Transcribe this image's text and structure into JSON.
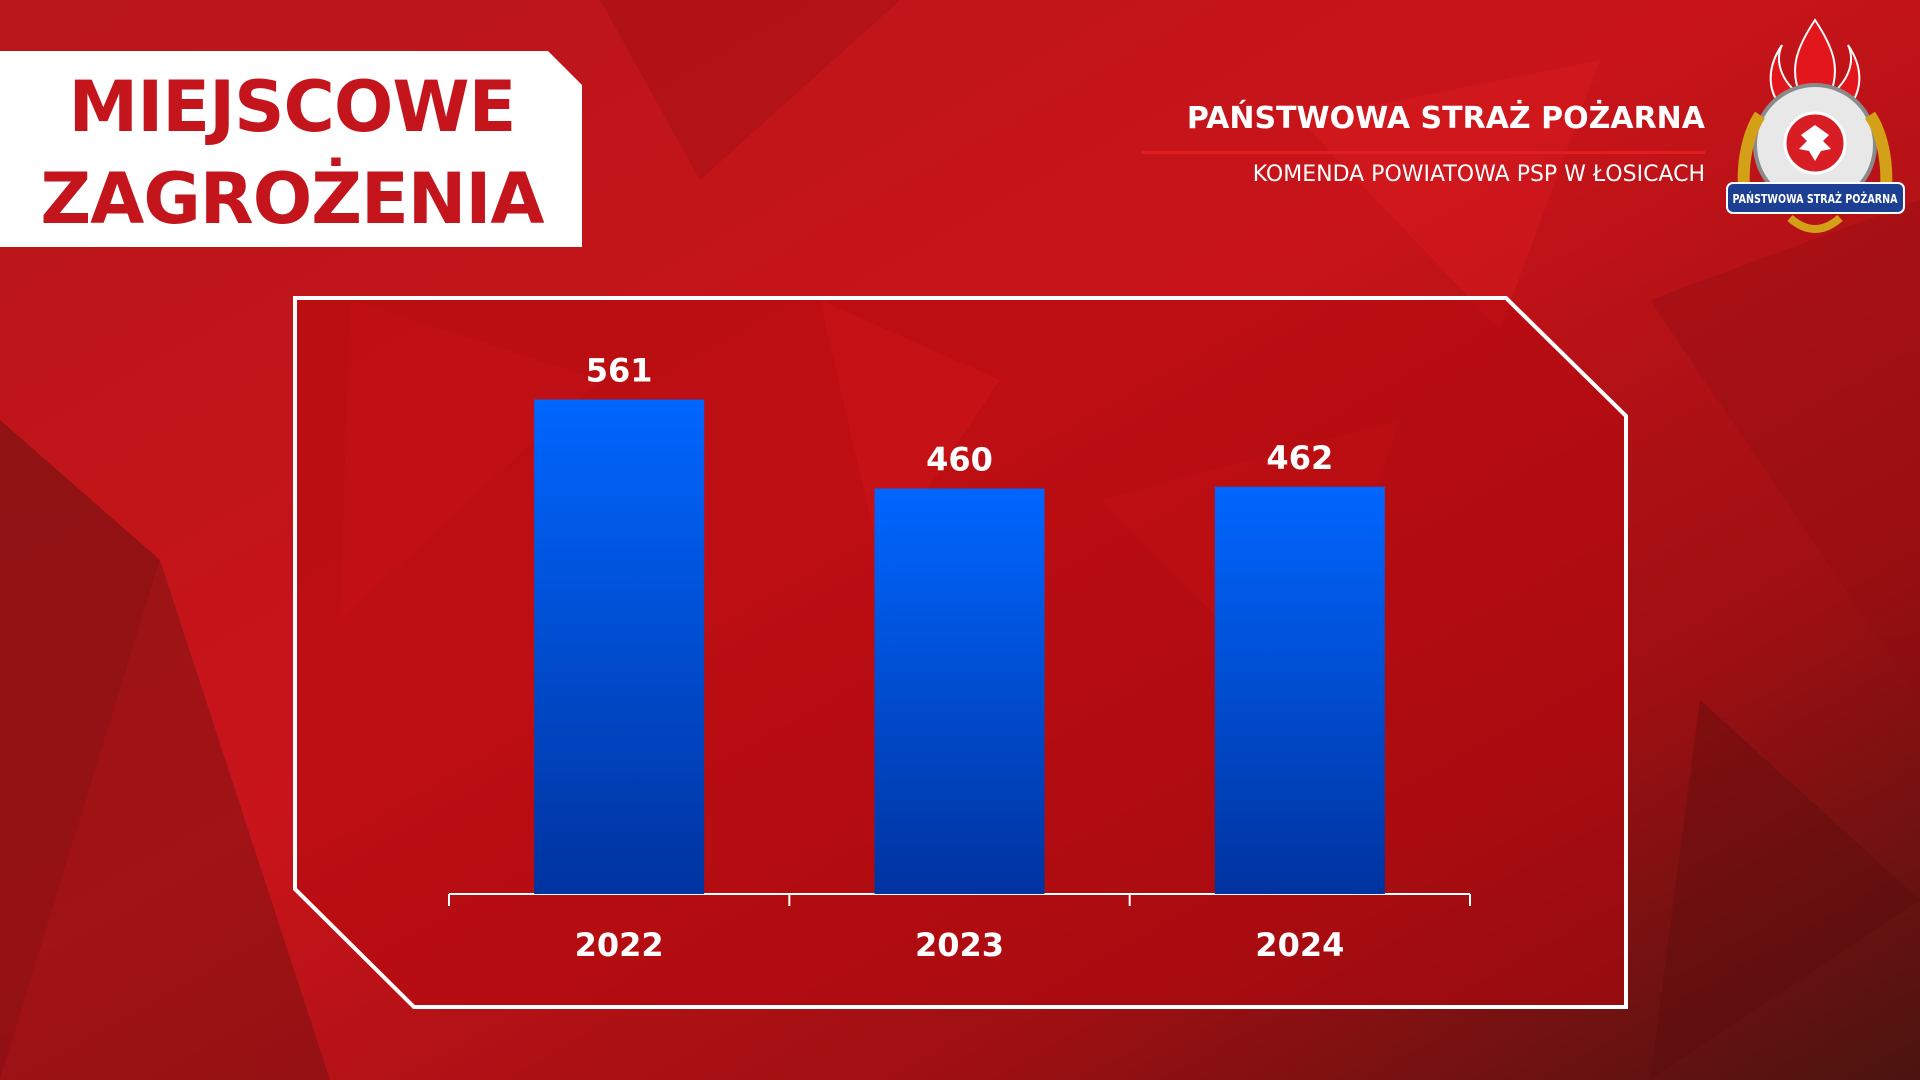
{
  "chart_data": {
    "type": "bar",
    "title": "MIEJSCOWE ZAGROŻENIA",
    "organization": "PAŃSTWOWA STRAŻ POŻARNA",
    "unit": "KOMENDA POWIATOWA PSP W ŁOSICACH",
    "categories": [
      "2022",
      "2023",
      "2024"
    ],
    "values": [
      561,
      460,
      462
    ],
    "color": "#0062f5",
    "ylim": [
      0,
      700
    ]
  }
}
